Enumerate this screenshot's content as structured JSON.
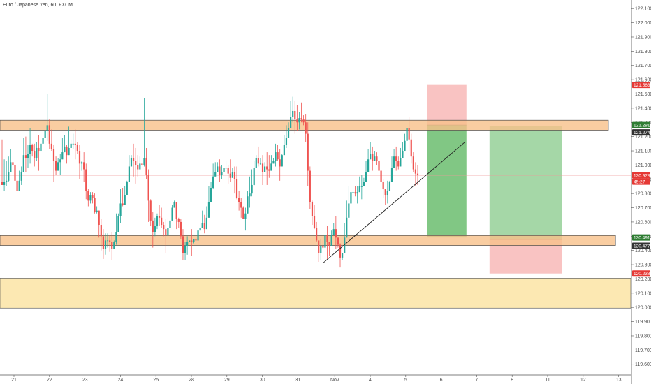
{
  "header": {
    "symbol_title": "Euro / Japanese Yen, 60, FXCM"
  },
  "colors": {
    "up": "#26a69a",
    "down": "#ef5350",
    "zone_fill": "#f7c08a",
    "zone_stroke": "#4a4a4a",
    "yellow_zone": "#fce8b2",
    "profit_fill": "#4caf50",
    "loss_fill": "#ef5350",
    "price_line": "#ef9a9a",
    "axis_text": "#4a4a4a",
    "tag_red": "#e53935",
    "tag_green": "#2e7d32",
    "tag_dark": "#333333"
  },
  "chart_data": {
    "type": "candlestick",
    "title": "Euro / Japanese Yen, 60, FXCM",
    "ylim": [
      119.53,
      122.16
    ],
    "y_ticks": [
      "122.100",
      "122.000",
      "121.900",
      "121.800",
      "121.700",
      "121.600",
      "121.500",
      "121.400",
      "121.300",
      "121.200",
      "121.100",
      "121.000",
      "120.900",
      "120.800",
      "120.700",
      "120.600",
      "120.500",
      "120.400",
      "120.300",
      "120.200",
      "120.100",
      "120.000",
      "119.900",
      "119.800",
      "119.700",
      "119.600"
    ],
    "x_ticks": [
      "21",
      "22",
      "23",
      "24",
      "25",
      "28",
      "29",
      "30",
      "31",
      "Nov",
      "4",
      "5",
      "6",
      "7",
      "8",
      "11",
      "12",
      "13"
    ],
    "current_price_label": "120.928",
    "countdown_label": "45:27",
    "price_tags": [
      {
        "label": "121.563",
        "value": 121.563,
        "style": "red"
      },
      {
        "label": "121.281",
        "value": 121.281,
        "style": "green"
      },
      {
        "label": "121.274",
        "value": 121.274,
        "style": "dark"
      },
      {
        "label": "120.491",
        "value": 120.491,
        "style": "green"
      },
      {
        "label": "120.477",
        "value": 120.477,
        "style": "dark"
      },
      {
        "label": "120.238",
        "value": 120.238,
        "style": "red"
      }
    ],
    "zones": [
      {
        "name": "resistance",
        "from": 121.245,
        "to": 121.315,
        "x_end_day": 16.85
      },
      {
        "name": "support",
        "from": 120.435,
        "to": 120.505,
        "x_end_day": 17.05
      },
      {
        "name": "lower-demand",
        "from": 119.995,
        "to": 120.205,
        "x_end_day": 17.4
      }
    ],
    "trendline": {
      "x1_day": 8.8,
      "y1": 120.31,
      "x2_day": 12.8,
      "y2": 121.16
    },
    "positions": [
      {
        "name": "short-position",
        "x1_day": 11.75,
        "x2_day": 12.85,
        "entry": 121.281,
        "stop": 121.563,
        "target": 120.491
      },
      {
        "name": "long-position",
        "x1_day": 13.5,
        "x2_day": 15.55,
        "entry": 120.477,
        "stop": 120.238,
        "target": 121.274
      }
    ],
    "candles": [
      [
        120.88,
        120.86,
        121.18,
        120.9
      ],
      [
        120.86,
        120.88,
        121.04,
        120.82
      ],
      [
        120.88,
        120.89,
        120.85,
        121.03
      ],
      [
        120.89,
        120.95,
        121.06,
        120.88
      ],
      [
        120.95,
        121.02,
        121.11,
        120.98
      ],
      [
        121.02,
        121.0,
        121.11,
        120.95
      ],
      [
        121.0,
        120.89,
        121.04,
        120.71
      ],
      [
        120.89,
        120.82,
        120.91,
        120.69
      ],
      [
        120.82,
        120.89,
        120.86,
        120.96
      ],
      [
        120.89,
        120.95,
        120.86,
        120.99
      ],
      [
        120.95,
        121.07,
        121.19,
        120.95
      ],
      [
        121.07,
        121.05,
        121.2,
        120.95
      ],
      [
        121.05,
        121.08,
        120.98,
        121.14
      ],
      [
        121.08,
        121.14,
        121.26,
        121.01
      ],
      [
        121.14,
        121.1,
        121.06,
        121.15
      ],
      [
        121.1,
        121.05,
        121.15,
        120.99
      ],
      [
        121.05,
        121.12,
        121.03,
        121.16
      ],
      [
        121.12,
        121.1,
        121.21,
        120.96
      ],
      [
        121.1,
        121.15,
        121.15,
        121.07
      ],
      [
        121.15,
        121.19,
        121.3,
        121.08
      ],
      [
        121.19,
        121.24,
        121.22,
        121.24
      ],
      [
        121.24,
        121.28,
        121.5,
        121.17
      ],
      [
        121.28,
        121.15,
        121.32,
        121.11
      ],
      [
        121.15,
        121.11,
        121.25,
        121.1
      ],
      [
        121.11,
        121.03,
        121.14,
        120.88
      ],
      [
        121.03,
        120.96,
        121.06,
        120.93
      ],
      [
        120.96,
        121.02,
        121.0,
        121.05
      ],
      [
        121.02,
        121.04,
        121.08,
        120.93
      ],
      [
        121.04,
        121.09,
        121.07,
        121.19
      ],
      [
        121.09,
        121.13,
        121.21,
        121.12
      ],
      [
        121.13,
        121.07,
        121.14,
        121.01
      ],
      [
        121.07,
        121.12,
        121.27,
        121.1
      ],
      [
        121.12,
        121.15,
        121.12,
        121.18
      ],
      [
        121.15,
        121.15,
        121.22,
        121.11
      ],
      [
        121.15,
        121.14,
        121.25,
        121.04
      ],
      [
        121.14,
        121.1,
        121.16,
        121.08
      ],
      [
        121.1,
        121.01,
        121.14,
        120.9
      ],
      [
        121.01,
        121.02,
        121.03,
        120.96
      ],
      [
        121.02,
        120.97,
        121.09,
        120.88
      ],
      [
        120.97,
        120.82,
        121.01,
        120.76
      ],
      [
        120.82,
        120.75,
        120.83,
        120.71
      ],
      [
        120.75,
        120.79,
        120.73,
        120.81
      ],
      [
        120.79,
        120.77,
        120.81,
        120.73
      ],
      [
        120.77,
        120.67,
        120.8,
        120.66
      ],
      [
        120.67,
        120.68,
        120.71,
        120.66
      ],
      [
        120.68,
        120.58,
        120.68,
        120.49
      ],
      [
        120.58,
        120.5,
        120.62,
        120.4
      ],
      [
        120.5,
        120.41,
        120.55,
        120.34
      ],
      [
        120.41,
        120.47,
        120.52,
        120.37
      ],
      [
        120.47,
        120.47,
        120.52,
        120.42
      ],
      [
        120.47,
        120.46,
        120.51,
        120.39
      ],
      [
        120.46,
        120.41,
        120.53,
        120.33
      ],
      [
        120.41,
        120.46,
        120.43,
        120.47
      ],
      [
        120.46,
        120.53,
        120.66,
        120.44
      ],
      [
        120.53,
        120.64,
        120.64,
        120.66
      ],
      [
        120.64,
        120.73,
        120.83,
        120.59
      ],
      [
        120.73,
        120.72,
        120.84,
        120.71
      ],
      [
        120.72,
        120.79,
        120.8,
        120.85
      ],
      [
        120.79,
        120.88,
        120.86,
        120.89
      ],
      [
        120.88,
        120.99,
        121.0,
        121.07
      ],
      [
        120.99,
        121.05,
        121.07,
        121.05
      ],
      [
        121.05,
        121.03,
        121.15,
        120.92
      ],
      [
        121.03,
        121.0,
        121.12,
        120.87
      ],
      [
        121.0,
        120.97,
        121.07,
        120.92
      ],
      [
        120.97,
        121.01,
        120.98,
        121.06
      ],
      [
        121.01,
        121.0,
        121.09,
        120.94
      ],
      [
        121.0,
        121.05,
        121.47,
        120.99
      ],
      [
        121.05,
        120.93,
        121.12,
        120.9
      ],
      [
        120.93,
        120.75,
        120.97,
        120.6
      ],
      [
        120.75,
        120.61,
        120.76,
        120.57
      ],
      [
        120.61,
        120.53,
        120.67,
        120.42
      ],
      [
        120.53,
        120.57,
        120.63,
        120.5
      ],
      [
        120.57,
        120.64,
        120.66,
        120.55
      ],
      [
        120.64,
        120.63,
        120.72,
        120.57
      ],
      [
        120.63,
        120.58,
        120.7,
        120.56
      ],
      [
        120.58,
        120.55,
        120.6,
        120.5
      ],
      [
        120.55,
        120.51,
        120.62,
        120.38
      ],
      [
        120.51,
        120.56,
        120.49,
        120.63
      ],
      [
        120.56,
        120.61,
        120.7,
        120.55
      ],
      [
        120.61,
        120.7,
        120.69,
        120.72
      ],
      [
        120.7,
        120.74,
        120.75,
        120.75
      ],
      [
        120.74,
        120.62,
        120.74,
        120.55
      ],
      [
        120.62,
        120.6,
        120.63,
        120.56
      ],
      [
        120.6,
        120.5,
        120.62,
        120.48
      ],
      [
        120.5,
        120.38,
        120.55,
        120.33
      ],
      [
        120.38,
        120.43,
        120.33,
        120.46
      ],
      [
        120.43,
        120.46,
        120.5,
        120.37
      ],
      [
        120.46,
        120.47,
        120.47,
        120.47
      ],
      [
        120.47,
        120.46,
        120.55,
        120.36
      ],
      [
        120.46,
        120.48,
        120.45,
        120.48
      ],
      [
        120.48,
        120.47,
        120.46,
        120.53
      ],
      [
        120.47,
        120.54,
        120.62,
        120.46
      ],
      [
        120.54,
        120.56,
        120.54,
        120.59
      ],
      [
        120.56,
        120.59,
        120.68,
        120.57
      ],
      [
        120.59,
        120.55,
        120.65,
        120.52
      ],
      [
        120.55,
        120.63,
        120.57,
        120.71
      ],
      [
        120.63,
        120.74,
        120.85,
        120.65
      ],
      [
        120.74,
        120.84,
        120.88,
        120.84
      ],
      [
        120.84,
        120.92,
        121.01,
        120.83
      ],
      [
        120.92,
        120.95,
        121.02,
        120.96
      ],
      [
        120.95,
        120.99,
        121.02,
        121.0
      ],
      [
        120.99,
        120.93,
        121.04,
        120.88
      ],
      [
        120.93,
        120.95,
        120.9,
        121.0
      ],
      [
        120.95,
        120.98,
        121.07,
        120.92
      ],
      [
        120.98,
        120.98,
        121.03,
        120.95
      ],
      [
        120.98,
        120.94,
        121.0,
        120.87
      ],
      [
        120.94,
        120.91,
        121.04,
        120.88
      ],
      [
        120.91,
        120.95,
        120.96,
        120.98
      ],
      [
        120.95,
        120.9,
        120.99,
        120.8
      ],
      [
        120.9,
        120.77,
        120.99,
        120.76
      ],
      [
        120.77,
        120.74,
        120.82,
        120.68
      ],
      [
        120.74,
        120.7,
        120.77,
        120.63
      ],
      [
        120.7,
        120.62,
        120.71,
        120.62
      ],
      [
        120.62,
        120.66,
        120.7,
        120.54
      ],
      [
        120.66,
        120.78,
        120.82,
        120.67
      ],
      [
        120.78,
        120.8,
        120.92,
        120.7
      ],
      [
        120.8,
        120.86,
        120.97,
        120.78
      ],
      [
        120.86,
        120.98,
        121.03,
        120.85
      ],
      [
        120.98,
        121.05,
        121.07,
        121.05
      ],
      [
        121.05,
        121.01,
        121.13,
        120.99
      ],
      [
        121.01,
        121.01,
        121.0,
        121.05
      ],
      [
        121.01,
        120.95,
        121.07,
        120.86
      ],
      [
        120.95,
        120.99,
        121.0,
        121.02
      ],
      [
        120.99,
        120.97,
        121.09,
        120.86
      ],
      [
        120.97,
        120.96,
        121.07,
        120.91
      ],
      [
        120.96,
        121.01,
        121.07,
        121.0
      ],
      [
        121.01,
        121.03,
        121.05,
        121.03
      ],
      [
        121.03,
        121.09,
        121.15,
        120.99
      ],
      [
        121.09,
        121.04,
        121.14,
        121.03
      ],
      [
        121.04,
        120.99,
        121.11,
        120.89
      ],
      [
        120.99,
        121.07,
        121.08,
        121.08
      ],
      [
        121.07,
        121.14,
        121.21,
        121.1
      ],
      [
        121.14,
        121.19,
        121.28,
        121.12
      ],
      [
        121.19,
        121.26,
        121.3,
        121.23
      ],
      [
        121.26,
        121.34,
        121.45,
        121.29
      ],
      [
        121.34,
        121.38,
        121.48,
        121.3
      ],
      [
        121.38,
        121.32,
        121.45,
        121.22
      ],
      [
        121.32,
        121.3,
        121.42,
        121.24
      ],
      [
        121.3,
        121.33,
        121.37,
        121.25
      ],
      [
        121.33,
        121.32,
        121.44,
        121.3
      ],
      [
        121.32,
        121.3,
        121.35,
        121.28
      ],
      [
        121.3,
        121.22,
        121.36,
        121.16
      ],
      [
        121.22,
        120.96,
        121.3,
        120.85
      ],
      [
        120.96,
        120.74,
        120.99,
        120.69
      ],
      [
        120.74,
        120.64,
        120.75,
        120.58
      ],
      [
        120.64,
        120.56,
        120.72,
        120.55
      ],
      [
        120.56,
        120.47,
        120.6,
        120.46
      ],
      [
        120.47,
        120.38,
        120.47,
        120.32
      ],
      [
        120.38,
        120.43,
        120.48,
        120.33
      ],
      [
        120.43,
        120.42,
        120.47,
        120.41
      ],
      [
        120.42,
        120.51,
        120.52,
        120.44
      ],
      [
        120.51,
        120.46,
        120.57,
        120.34
      ],
      [
        120.46,
        120.43,
        120.46,
        120.36
      ],
      [
        120.43,
        120.51,
        120.51,
        120.54
      ],
      [
        120.51,
        120.55,
        120.59,
        120.51
      ],
      [
        120.55,
        120.49,
        120.64,
        120.41
      ],
      [
        120.49,
        120.44,
        120.48,
        120.42
      ],
      [
        120.44,
        120.35,
        120.45,
        120.28
      ],
      [
        120.35,
        120.38,
        120.38,
        120.33
      ],
      [
        120.38,
        120.49,
        120.59,
        120.43
      ],
      [
        120.49,
        120.63,
        120.75,
        120.49
      ],
      [
        120.63,
        120.73,
        120.85,
        120.66
      ],
      [
        120.73,
        120.81,
        120.82,
        120.75
      ],
      [
        120.81,
        120.81,
        120.83,
        120.81
      ],
      [
        120.81,
        120.8,
        120.85,
        120.78
      ],
      [
        120.8,
        120.81,
        120.85,
        120.73
      ],
      [
        120.81,
        120.85,
        120.92,
        120.83
      ],
      [
        120.85,
        120.85,
        120.93,
        120.76
      ],
      [
        120.85,
        120.88,
        120.91,
        120.91
      ],
      [
        120.88,
        120.95,
        121.03,
        120.89
      ],
      [
        120.95,
        121.04,
        121.11,
        121.0
      ],
      [
        121.04,
        121.08,
        121.16,
        121.06
      ],
      [
        121.08,
        121.03,
        121.13,
        120.96
      ],
      [
        121.03,
        121.06,
        121.1,
        121.07
      ],
      [
        121.06,
        121.03,
        121.09,
        121.0
      ],
      [
        121.03,
        120.96,
        121.08,
        120.91
      ],
      [
        120.96,
        120.88,
        120.97,
        120.81
      ],
      [
        120.88,
        120.83,
        120.9,
        120.77
      ],
      [
        120.83,
        120.79,
        120.82,
        120.72
      ],
      [
        120.79,
        120.82,
        120.89,
        120.73
      ],
      [
        120.82,
        120.88,
        120.88,
        120.89
      ],
      [
        120.88,
        120.98,
        121.06,
        120.9
      ],
      [
        120.98,
        121.06,
        121.11,
        121.06
      ],
      [
        121.06,
        121.03,
        121.13,
        120.96
      ],
      [
        121.03,
        120.99,
        121.06,
        120.97
      ],
      [
        120.99,
        121.05,
        121.12,
        121.05
      ],
      [
        121.05,
        121.1,
        121.16,
        121.06
      ],
      [
        121.1,
        121.17,
        121.22,
        121.1
      ],
      [
        121.17,
        121.26,
        121.27,
        121.21
      ],
      [
        121.26,
        121.18,
        121.34,
        121.1
      ],
      [
        121.18,
        121.06,
        121.22,
        121.01
      ],
      [
        121.06,
        120.97,
        121.09,
        120.95
      ],
      [
        120.97,
        120.94,
        121.02,
        120.85
      ],
      [
        120.94,
        120.93,
        121.0,
        120.86
      ]
    ]
  }
}
